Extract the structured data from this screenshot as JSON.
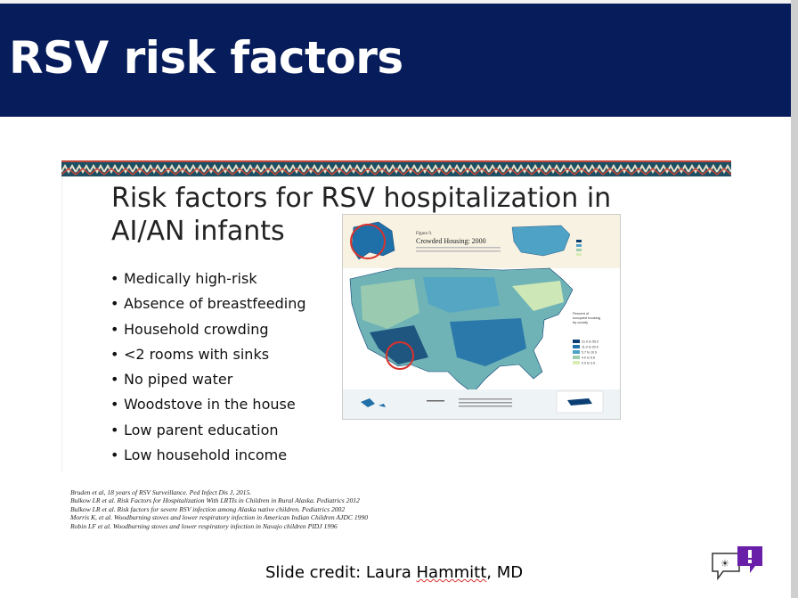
{
  "slide": {
    "title": "RSV risk factors",
    "subtitle": "Risk factors for RSV hospitalization in AI/AN infants",
    "bullets": [
      "Medically high-risk",
      "Absence of breastfeeding",
      "Household crowding",
      "<2 rooms with sinks",
      "No piped water",
      "Woodstove in the house",
      "Low parent education",
      "Low household income"
    ],
    "map": {
      "figure_label": "Figure 9.",
      "figure_title": "Crowded Housing: 2000",
      "legend_title": "Percent of occupied housing units with more than one person per room by county",
      "legend_items": [
        "21.0 to 55.0",
        "11.0 to 20.9",
        "5.7 to 10.9",
        "4.0 to 5.6",
        "0.0 to 3.9"
      ],
      "legend_colors": [
        "#0b3f73",
        "#1f6fa8",
        "#4ea2c6",
        "#9fcdb0",
        "#d8ecb6"
      ]
    },
    "references": [
      "Bruden et al, 18 years of RSV Surveillance. Ped Infect Dis J, 2015.",
      "Bulkow LR  et al. Risk Factors for Hospitalization With LRTIs in Children in Rural Alaska. Pediatrics 2012",
      "Bulkow LR et al. Risk factors for severe  RSV infection among Alaska native children. Pediatrics 2002",
      "Morris K, et al. Woodburning stoves and lower respiratory infection in American Indian  Children AJDC 1990",
      "Robin LF et al. Woodburning stoves and lower respiratory infection in Navajo children PIDJ 1996"
    ],
    "credit_prefix": "Slide credit: Laura ",
    "credit_name": "Hammitt",
    "credit_suffix": ", MD"
  },
  "colors": {
    "header_bg": "#071c5a",
    "circle_red": "#d9322b"
  },
  "icons": {
    "chat": "chat-bubble-icon"
  }
}
